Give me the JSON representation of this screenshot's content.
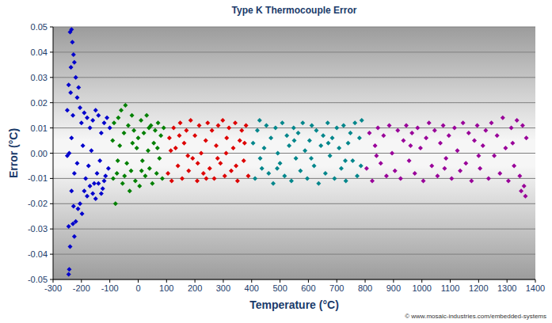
{
  "chart_data": {
    "type": "scatter",
    "title": "Type K Thermocouple Error",
    "xlabel": "Temperature (°C)",
    "ylabel": "Error (°C)",
    "annotations": [
      "© www.mosaic-industries.com/embedded-systems"
    ],
    "xlim": [
      -300,
      1400
    ],
    "ylim": [
      -0.05,
      0.05
    ],
    "xticks": [
      -300,
      -200,
      -100,
      0,
      100,
      200,
      300,
      400,
      500,
      600,
      700,
      800,
      900,
      1000,
      1100,
      1200,
      1300,
      1400
    ],
    "yticks": [
      -0.05,
      -0.04,
      -0.03,
      -0.02,
      -0.01,
      {
        "value": 0,
        "label": "0.00"
      },
      0.01,
      0.02,
      0.03,
      0.04,
      0.05
    ],
    "grid": true,
    "marker": "diamond",
    "series": [
      {
        "color": "#0000cc",
        "x": [
          -240,
          -235,
          -232,
          -228,
          -225,
          -237,
          -245,
          -238,
          -220,
          -215,
          -210,
          -205,
          -230,
          -250,
          -200,
          -190,
          -180,
          -170,
          -160,
          -150,
          -140,
          -130,
          -120,
          -110,
          -100,
          -250,
          -243,
          -235,
          -225,
          -215,
          -195,
          -185,
          -175,
          -165,
          -155,
          -145,
          -135,
          -125,
          -115,
          -105,
          -245,
          -243,
          -240,
          -245,
          -230,
          -225,
          -220,
          -212,
          -205,
          -198,
          -190,
          -180,
          -170,
          -160,
          -150,
          -140,
          -130,
          -120,
          -235,
          -228
        ],
        "values": [
          0.048,
          0.049,
          0.044,
          0.039,
          0.036,
          0.034,
          0.027,
          0.024,
          0.03,
          0.022,
          0.026,
          0.018,
          0.015,
          0.017,
          0.012,
          0.016,
          0.014,
          0.01,
          0.013,
          0.017,
          0.015,
          0.008,
          0.012,
          0.014,
          0.01,
          -0.001,
          0.0,
          0.006,
          -0.008,
          -0.004,
          0.003,
          -0.01,
          -0.005,
          0.001,
          -0.012,
          -0.008,
          -0.003,
          -0.014,
          -0.009,
          -0.006,
          -0.048,
          -0.046,
          -0.037,
          -0.029,
          -0.028,
          -0.033,
          -0.027,
          -0.022,
          -0.02,
          -0.024,
          -0.015,
          -0.017,
          -0.013,
          -0.016,
          -0.018,
          -0.012,
          -0.016,
          -0.011,
          -0.015,
          -0.021
        ]
      },
      {
        "color": "#008000",
        "x": [
          -90,
          -85,
          -80,
          -75,
          -70,
          -65,
          -60,
          -55,
          -50,
          -45,
          -40,
          -35,
          -30,
          -25,
          -20,
          -15,
          -10,
          -5,
          0,
          5,
          10,
          15,
          20,
          25,
          30,
          35,
          40,
          45,
          50,
          55,
          60,
          65,
          70,
          75,
          80,
          85,
          90,
          -88,
          -72,
          -48,
          -22,
          12,
          38,
          68
        ],
        "values": [
          0.005,
          0.012,
          -0.02,
          -0.008,
          0.014,
          0.003,
          0.017,
          -0.012,
          0.008,
          0.019,
          -0.004,
          0.011,
          -0.015,
          -0.007,
          0.004,
          0.009,
          -0.011,
          0.002,
          0.006,
          -0.013,
          0.013,
          -0.003,
          0.008,
          -0.009,
          0.015,
          0.001,
          -0.006,
          0.011,
          -0.012,
          0.004,
          0.009,
          -0.008,
          0.012,
          -0.002,
          0.007,
          -0.01,
          0.01,
          -0.01,
          -0.003,
          -0.009,
          0.015,
          -0.007,
          0.01,
          0.002
        ]
      },
      {
        "color": "#dd0000",
        "x": [
          105,
          110,
          118,
          125,
          132,
          140,
          148,
          155,
          162,
          170,
          178,
          185,
          192,
          200,
          208,
          215,
          222,
          230,
          238,
          245,
          252,
          260,
          268,
          275,
          282,
          290,
          298,
          305,
          312,
          320,
          328,
          335,
          342,
          350,
          358,
          365,
          372,
          380,
          388,
          115,
          145,
          175,
          210,
          240,
          280,
          310,
          345,
          375
        ],
        "values": [
          -0.008,
          0.006,
          -0.011,
          0.01,
          0.002,
          -0.005,
          0.012,
          -0.01,
          0.004,
          0.009,
          -0.007,
          0.013,
          -0.002,
          0.007,
          -0.011,
          0.011,
          0.0,
          -0.008,
          0.005,
          0.012,
          -0.006,
          0.009,
          -0.01,
          0.003,
          0.011,
          -0.004,
          0.013,
          -0.009,
          0.006,
          0.01,
          -0.007,
          0.002,
          0.012,
          -0.011,
          0.005,
          0.009,
          -0.003,
          0.011,
          -0.009,
          0.001,
          0.007,
          -0.001,
          -0.004,
          -0.01,
          -0.002,
          0.0,
          -0.005,
          0.004
        ]
      },
      {
        "color": "#00868b",
        "x": [
          405,
          412,
          420,
          428,
          436,
          444,
          452,
          460,
          468,
          476,
          484,
          492,
          500,
          508,
          516,
          524,
          532,
          540,
          548,
          556,
          564,
          572,
          580,
          588,
          596,
          604,
          612,
          620,
          628,
          636,
          644,
          652,
          660,
          668,
          676,
          684,
          692,
          700,
          708,
          716,
          724,
          732,
          740,
          748,
          756,
          764,
          772,
          780,
          788,
          430,
          490,
          550,
          610,
          670,
          730,
          785
        ],
        "values": [
          0.004,
          -0.01,
          0.009,
          0.013,
          -0.006,
          0.002,
          0.011,
          -0.008,
          0.006,
          -0.012,
          0.01,
          0.0,
          -0.004,
          0.012,
          -0.009,
          0.007,
          0.003,
          -0.011,
          0.01,
          -0.002,
          0.008,
          -0.007,
          0.012,
          0.001,
          -0.01,
          0.005,
          0.011,
          -0.005,
          0.009,
          -0.012,
          0.003,
          0.007,
          -0.008,
          0.012,
          -0.001,
          0.006,
          -0.01,
          0.01,
          0.002,
          -0.006,
          0.011,
          -0.011,
          0.004,
          0.008,
          -0.003,
          0.012,
          -0.009,
          0.006,
          0.013,
          -0.002,
          -0.006,
          0.005,
          -0.002,
          0.004,
          -0.003,
          -0.005
        ]
      },
      {
        "color": "#990099",
        "x": [
          805,
          815,
          825,
          835,
          845,
          855,
          865,
          875,
          885,
          895,
          905,
          915,
          925,
          935,
          945,
          955,
          965,
          975,
          985,
          995,
          1005,
          1015,
          1025,
          1035,
          1045,
          1055,
          1065,
          1075,
          1085,
          1095,
          1105,
          1115,
          1125,
          1135,
          1145,
          1155,
          1165,
          1175,
          1185,
          1195,
          1205,
          1215,
          1225,
          1235,
          1245,
          1255,
          1265,
          1275,
          1285,
          1295,
          1305,
          1315,
          1325,
          1335,
          1345,
          1355,
          1360,
          1365,
          1368,
          1350,
          840,
          960,
          1080,
          1200,
          1320
        ],
        "values": [
          -0.006,
          0.008,
          -0.011,
          0.003,
          0.01,
          -0.004,
          0.007,
          -0.009,
          0.011,
          0.0,
          -0.007,
          0.009,
          -0.01,
          0.005,
          0.011,
          -0.003,
          0.008,
          -0.008,
          0.01,
          0.002,
          -0.011,
          0.006,
          0.012,
          -0.005,
          0.009,
          -0.009,
          0.004,
          0.011,
          -0.002,
          0.007,
          -0.01,
          0.01,
          0.001,
          -0.007,
          0.012,
          -0.004,
          0.008,
          -0.011,
          0.005,
          0.011,
          -0.006,
          0.003,
          0.009,
          -0.01,
          0.012,
          -0.001,
          0.007,
          -0.008,
          0.014,
          0.002,
          -0.011,
          0.01,
          -0.005,
          0.013,
          -0.009,
          0.011,
          -0.013,
          -0.017,
          0.006,
          -0.015,
          -0.001,
          0.003,
          -0.006,
          -0.001,
          0.004
        ]
      }
    ]
  }
}
